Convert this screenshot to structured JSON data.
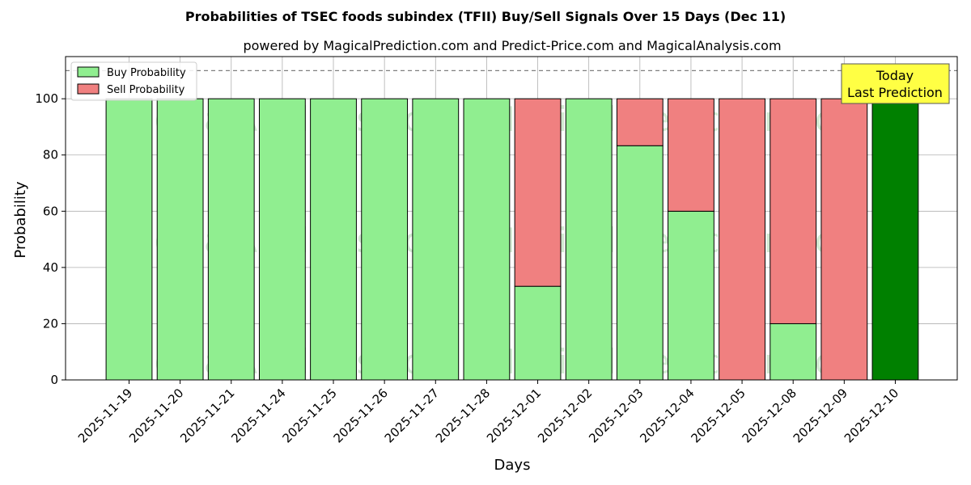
{
  "chart_data": {
    "type": "bar",
    "stacked": true,
    "title": "Probabilities of TSEC foods subindex (TFII) Buy/Sell Signals Over 15 Days (Dec 11)",
    "subtitle": "powered by MagicalPrediction.com and Predict-Price.com and MagicalAnalysis.com",
    "xlabel": "Days",
    "ylabel": "Probability",
    "ylim": [
      0,
      115
    ],
    "yticks": [
      0,
      20,
      40,
      60,
      80,
      100
    ],
    "reference_line": 110,
    "grid": true,
    "legend_position": "top-left",
    "categories": [
      "2025-11-19",
      "2025-11-20",
      "2025-11-21",
      "2025-11-24",
      "2025-11-25",
      "2025-11-26",
      "2025-11-27",
      "2025-11-28",
      "2025-12-01",
      "2025-12-02",
      "2025-12-03",
      "2025-12-04",
      "2025-12-05",
      "2025-12-08",
      "2025-12-09",
      "2025-12-10"
    ],
    "series": [
      {
        "name": "Buy Probability",
        "color": "#90ee90",
        "values": [
          100,
          100,
          100,
          100,
          100,
          100,
          100,
          100,
          33.3,
          100,
          83.3,
          60,
          0,
          20,
          0,
          100
        ]
      },
      {
        "name": "Sell Probability",
        "color": "#f08080",
        "values": [
          0,
          0,
          0,
          0,
          0,
          0,
          0,
          0,
          66.7,
          0,
          16.7,
          40,
          100,
          80,
          100,
          0
        ]
      }
    ],
    "highlight": {
      "index": 15,
      "color": "#008000"
    },
    "annotation": {
      "line1": "Today",
      "line2": "Last Prediction"
    },
    "watermarks": [
      "MagicalAnalysis.com",
      "MagicalPrediction.com"
    ]
  }
}
